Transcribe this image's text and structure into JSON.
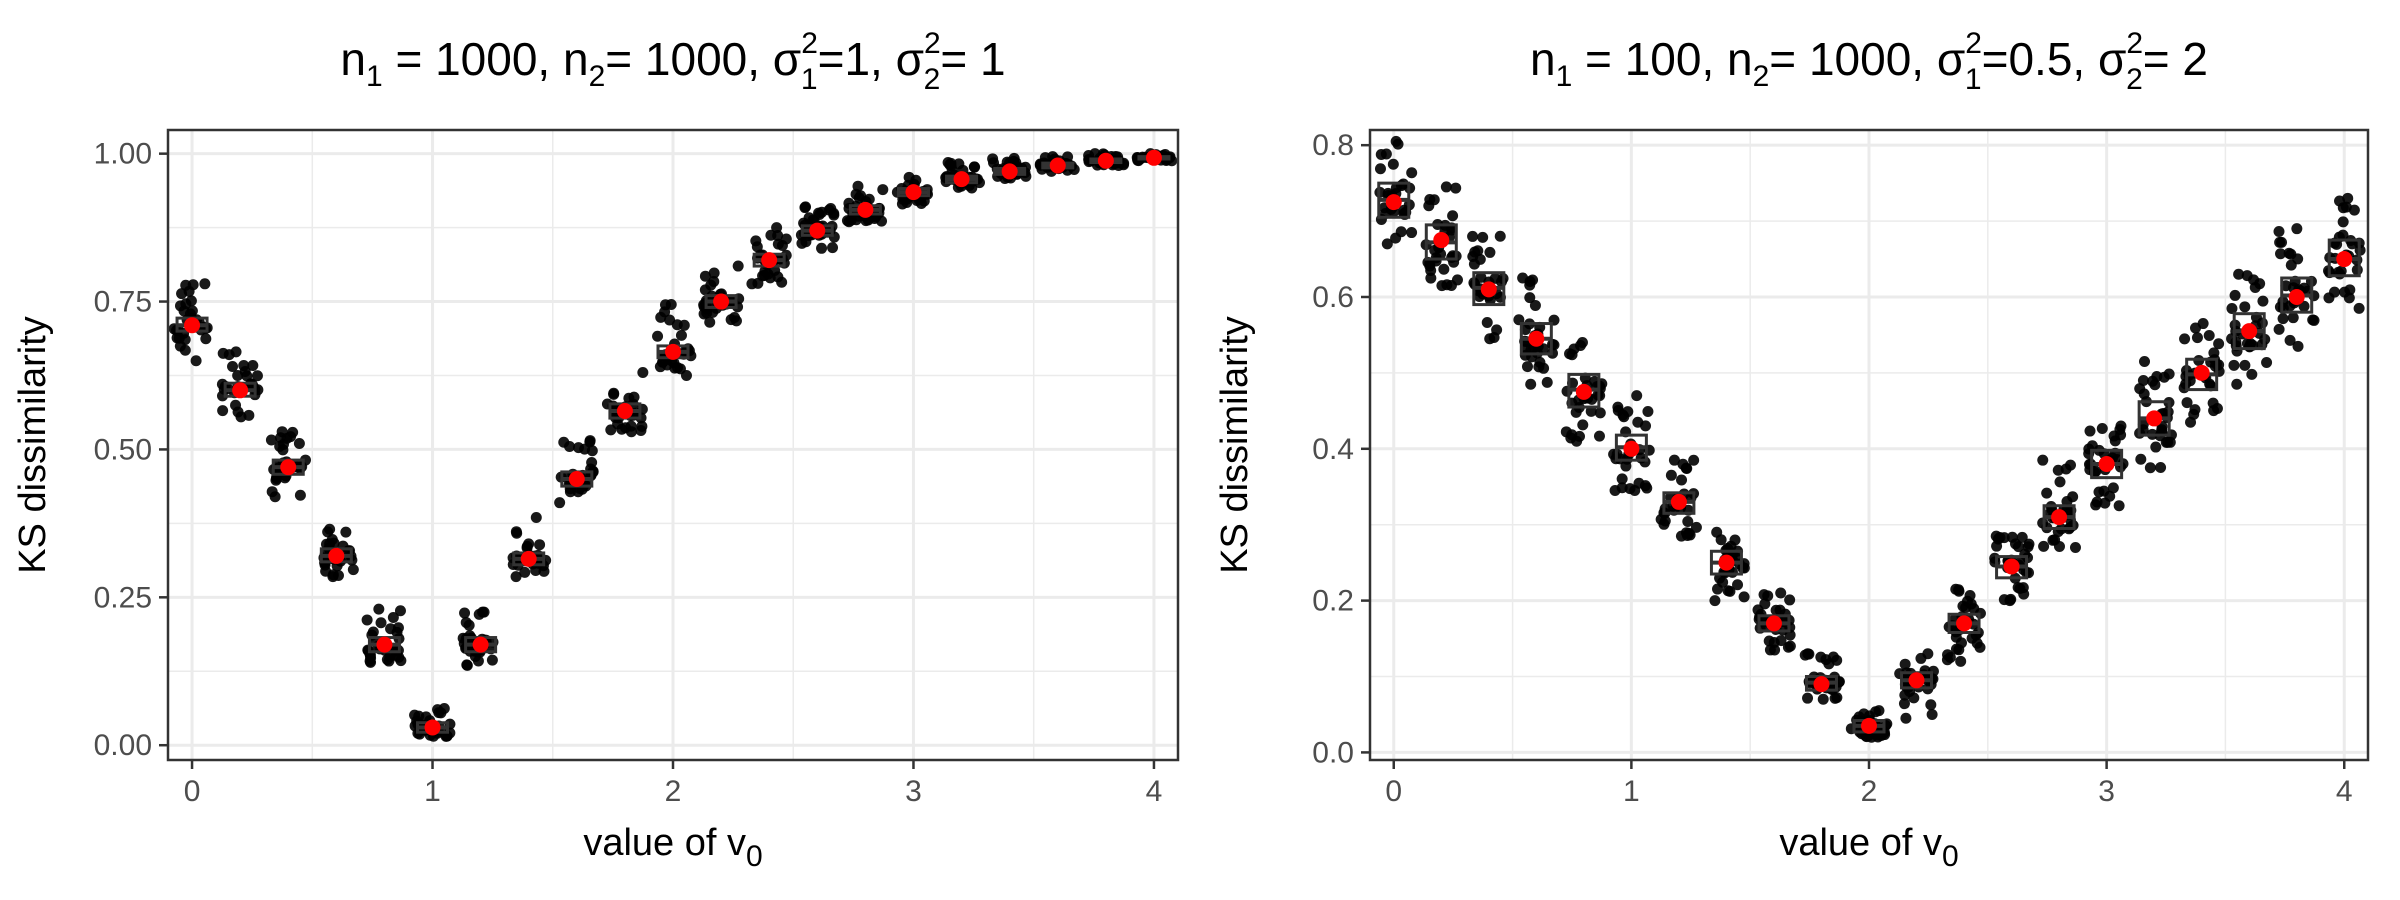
{
  "chart_data": [
    {
      "type": "boxplot",
      "title": {
        "parts": [
          {
            "t": "n"
          },
          {
            "t": "1",
            "sub": true
          },
          {
            "t": " = 1000, n"
          },
          {
            "t": "2",
            "sub": true
          },
          {
            "t": "= 1000, σ"
          },
          {
            "t": "1",
            "sub": true,
            "sup": "2"
          },
          {
            "t": "=1, σ"
          },
          {
            "t": "2",
            "sub": true,
            "sup": "2"
          },
          {
            "t": "= 1"
          }
        ]
      },
      "xlabel": {
        "parts": [
          {
            "t": "value of v"
          },
          {
            "t": "0",
            "sub": true
          }
        ]
      },
      "ylabel": "KS dissimilarity",
      "xlim": [
        -0.1,
        4.1
      ],
      "ylim": [
        -0.025,
        1.04
      ],
      "x_ticks": [
        0,
        1,
        2,
        3,
        4
      ],
      "x_tick_labels": [
        "0",
        "1",
        "2",
        "3",
        "4"
      ],
      "y_ticks": [
        0,
        0.25,
        0.5,
        0.75,
        1.0
      ],
      "y_tick_labels": [
        "0.00",
        "0.25",
        "0.50",
        "0.75",
        "1.00"
      ],
      "grid": true,
      "x": [
        0,
        0.2,
        0.4,
        0.6,
        0.8,
        1.0,
        1.2,
        1.4,
        1.6,
        1.8,
        2.0,
        2.2,
        2.4,
        2.6,
        2.8,
        3.0,
        3.2,
        3.4,
        3.6,
        3.8,
        4.0
      ],
      "mean": [
        0.71,
        0.6,
        0.47,
        0.32,
        0.17,
        0.03,
        0.17,
        0.315,
        0.45,
        0.565,
        0.665,
        0.75,
        0.82,
        0.87,
        0.905,
        0.935,
        0.957,
        0.97,
        0.98,
        0.988,
        0.993
      ],
      "q1": [
        0.7,
        0.59,
        0.458,
        0.31,
        0.158,
        0.022,
        0.158,
        0.305,
        0.438,
        0.553,
        0.655,
        0.74,
        0.81,
        0.862,
        0.898,
        0.929,
        0.951,
        0.965,
        0.976,
        0.985,
        0.991
      ],
      "median": [
        0.71,
        0.6,
        0.47,
        0.32,
        0.17,
        0.03,
        0.17,
        0.315,
        0.45,
        0.565,
        0.665,
        0.75,
        0.82,
        0.87,
        0.905,
        0.935,
        0.957,
        0.97,
        0.98,
        0.988,
        0.993
      ],
      "q3": [
        0.722,
        0.612,
        0.482,
        0.332,
        0.182,
        0.038,
        0.182,
        0.325,
        0.462,
        0.577,
        0.675,
        0.76,
        0.83,
        0.878,
        0.912,
        0.941,
        0.962,
        0.975,
        0.984,
        0.991,
        0.995
      ],
      "min": [
        0.65,
        0.555,
        0.42,
        0.285,
        0.14,
        0.015,
        0.135,
        0.285,
        0.41,
        0.53,
        0.625,
        0.715,
        0.78,
        0.84,
        0.885,
        0.915,
        0.942,
        0.958,
        0.97,
        0.98,
        0.988
      ],
      "max": [
        0.78,
        0.665,
        0.53,
        0.365,
        0.23,
        0.062,
        0.225,
        0.385,
        0.515,
        0.63,
        0.745,
        0.81,
        0.875,
        0.91,
        0.945,
        0.96,
        0.985,
        0.992,
        0.995,
        1.0,
        1.0
      ],
      "colors": {
        "points": "#000000",
        "mean": "#ff0000",
        "box": "#333333",
        "grid": "#ebebeb",
        "panel_border": "#333333"
      }
    },
    {
      "type": "boxplot",
      "title": {
        "parts": [
          {
            "t": "n"
          },
          {
            "t": "1",
            "sub": true
          },
          {
            "t": " = 100, n"
          },
          {
            "t": "2",
            "sub": true
          },
          {
            "t": "= 1000, σ"
          },
          {
            "t": "1",
            "sub": true,
            "sup": "2"
          },
          {
            "t": "=0.5, σ"
          },
          {
            "t": "2",
            "sub": true,
            "sup": "2"
          },
          {
            "t": "= 2"
          }
        ]
      },
      "xlabel": {
        "parts": [
          {
            "t": "value of v"
          },
          {
            "t": "0",
            "sub": true
          }
        ]
      },
      "ylabel": "KS dissimilarity",
      "xlim": [
        -0.1,
        4.1
      ],
      "ylim": [
        -0.01,
        0.82
      ],
      "x_ticks": [
        0,
        1,
        2,
        3,
        4
      ],
      "x_tick_labels": [
        "0",
        "1",
        "2",
        "3",
        "4"
      ],
      "y_ticks": [
        0,
        0.2,
        0.4,
        0.6,
        0.8
      ],
      "y_tick_labels": [
        "0.0",
        "0.2",
        "0.4",
        "0.6",
        "0.8"
      ],
      "grid": true,
      "x": [
        0,
        0.2,
        0.4,
        0.6,
        0.8,
        1.0,
        1.2,
        1.4,
        1.6,
        1.8,
        2.0,
        2.2,
        2.4,
        2.6,
        2.8,
        3.0,
        3.2,
        3.4,
        3.6,
        3.8,
        4.0
      ],
      "mean": [
        0.725,
        0.675,
        0.61,
        0.545,
        0.475,
        0.4,
        0.33,
        0.25,
        0.17,
        0.09,
        0.035,
        0.095,
        0.17,
        0.245,
        0.31,
        0.38,
        0.44,
        0.5,
        0.555,
        0.6,
        0.65
      ],
      "q1": [
        0.705,
        0.65,
        0.59,
        0.525,
        0.455,
        0.385,
        0.315,
        0.235,
        0.16,
        0.082,
        0.027,
        0.085,
        0.158,
        0.23,
        0.295,
        0.362,
        0.418,
        0.478,
        0.532,
        0.58,
        0.628
      ],
      "median": [
        0.728,
        0.672,
        0.612,
        0.545,
        0.478,
        0.402,
        0.33,
        0.25,
        0.17,
        0.092,
        0.035,
        0.095,
        0.17,
        0.245,
        0.31,
        0.38,
        0.44,
        0.498,
        0.555,
        0.602,
        0.65
      ],
      "q3": [
        0.75,
        0.695,
        0.632,
        0.565,
        0.498,
        0.418,
        0.342,
        0.265,
        0.18,
        0.1,
        0.042,
        0.105,
        0.182,
        0.258,
        0.325,
        0.398,
        0.462,
        0.518,
        0.578,
        0.625,
        0.675
      ],
      "min": [
        0.67,
        0.615,
        0.545,
        0.485,
        0.41,
        0.345,
        0.285,
        0.2,
        0.135,
        0.07,
        0.02,
        0.045,
        0.12,
        0.2,
        0.27,
        0.325,
        0.375,
        0.435,
        0.485,
        0.535,
        0.585
      ],
      "max": [
        0.805,
        0.745,
        0.68,
        0.625,
        0.54,
        0.47,
        0.385,
        0.29,
        0.21,
        0.13,
        0.055,
        0.13,
        0.215,
        0.285,
        0.385,
        0.43,
        0.515,
        0.565,
        0.63,
        0.69,
        0.73
      ],
      "colors": {
        "points": "#000000",
        "mean": "#ff0000",
        "box": "#333333",
        "grid": "#ebebeb",
        "panel_border": "#333333"
      }
    }
  ]
}
